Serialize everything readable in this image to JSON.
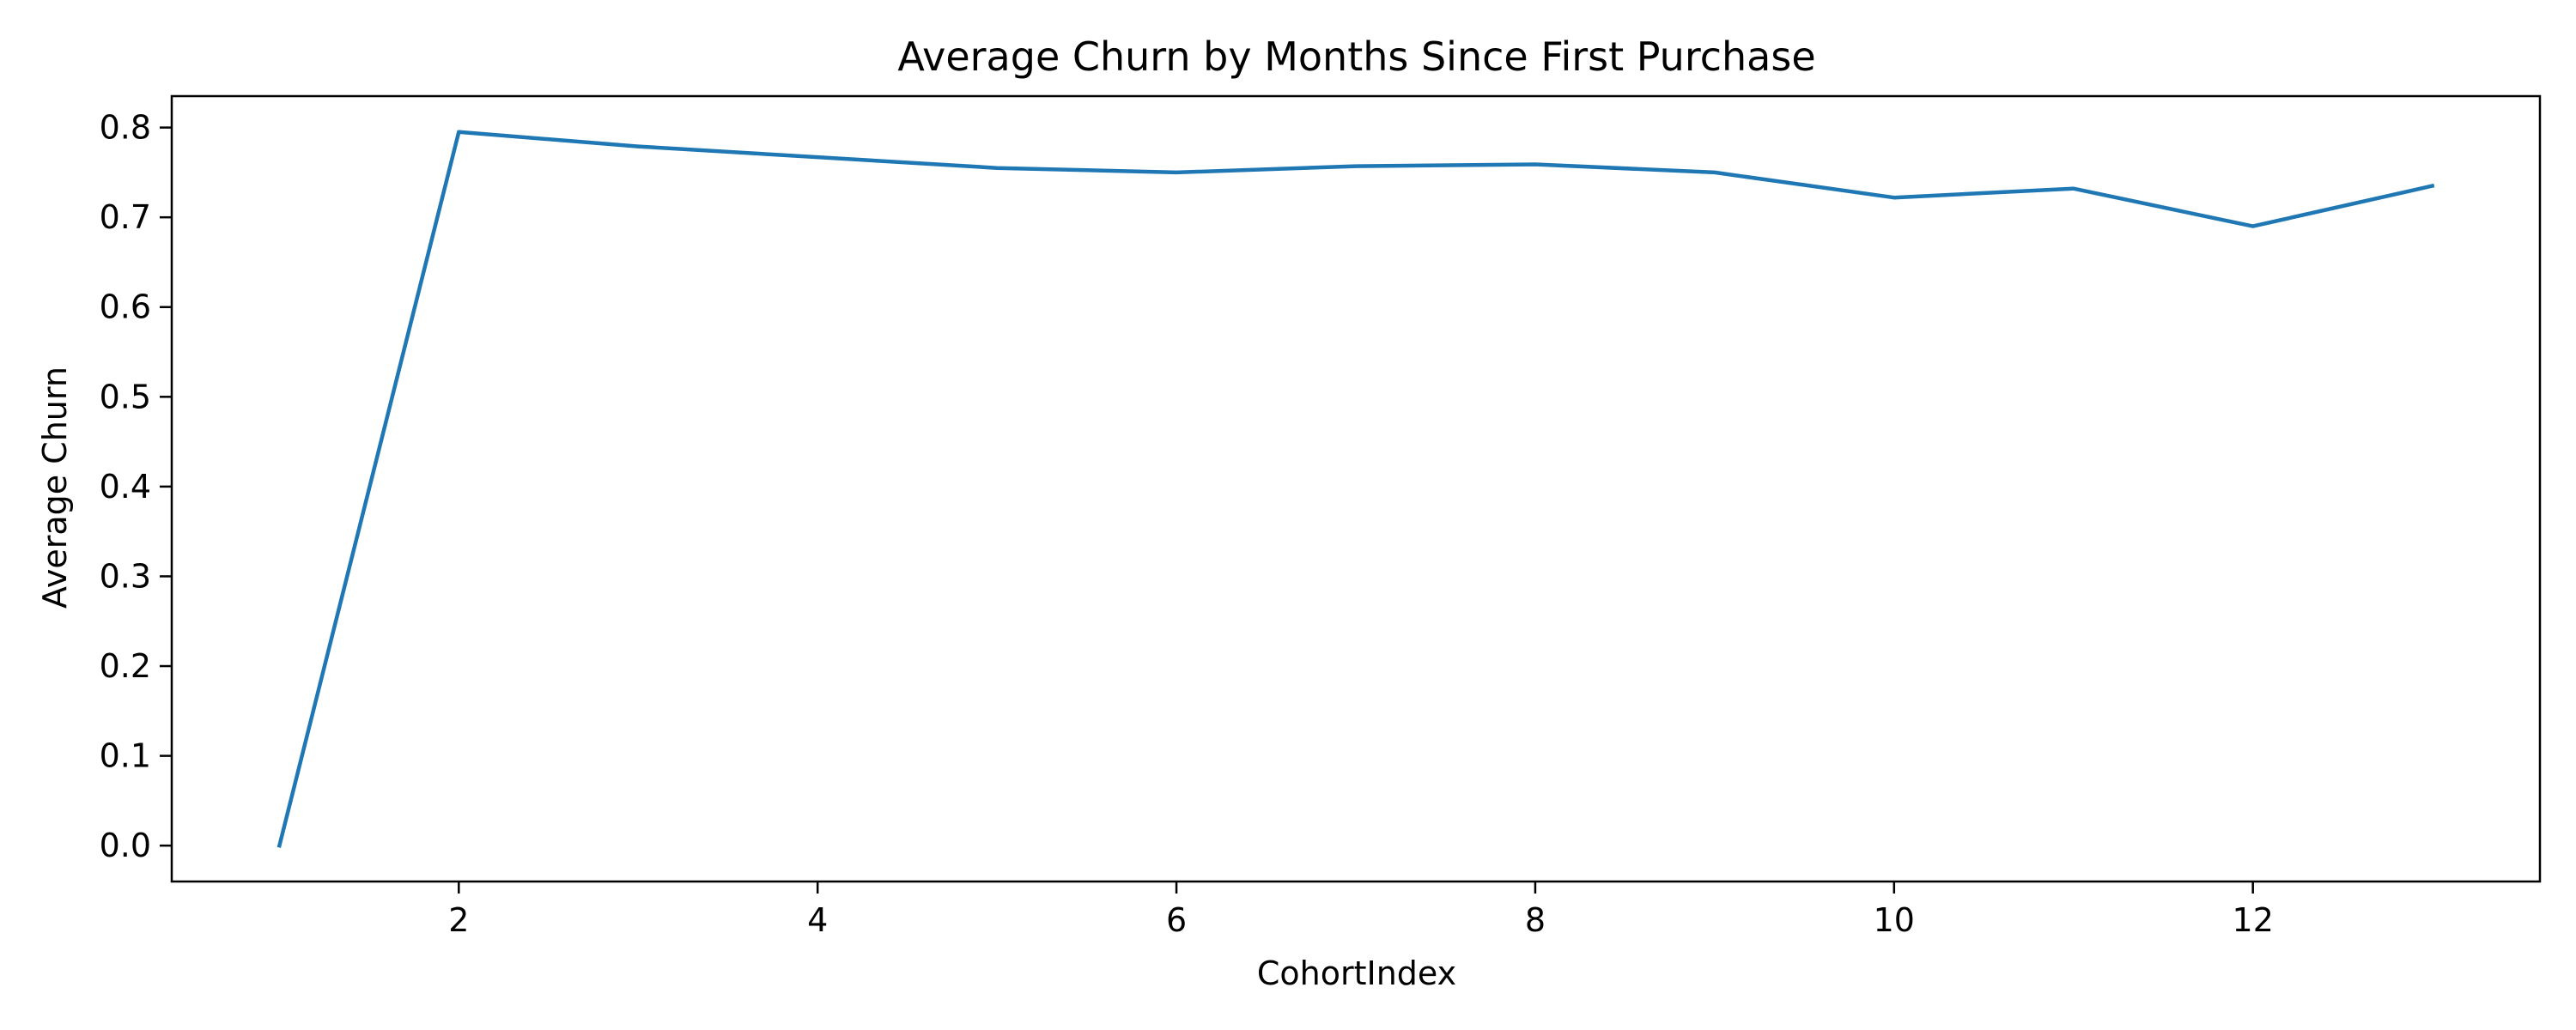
{
  "chart_data": {
    "type": "line",
    "title": "Average Churn by Months Since First Purchase",
    "xlabel": "CohortIndex",
    "ylabel": "Average Churn",
    "xlim": [
      0.4,
      13.6
    ],
    "ylim": [
      -0.04,
      0.835
    ],
    "x_ticks": [
      2,
      4,
      6,
      8,
      10,
      12
    ],
    "y_ticks": [
      0.0,
      0.1,
      0.2,
      0.3,
      0.4,
      0.5,
      0.6,
      0.7,
      0.8
    ],
    "grid": false,
    "series": [
      {
        "color": "#1f77b4",
        "x": [
          1,
          2,
          3,
          4,
          5,
          6,
          7,
          8,
          9,
          10,
          11,
          12,
          13
        ],
        "y": [
          0.0,
          0.795,
          0.779,
          0.767,
          0.755,
          0.75,
          0.757,
          0.759,
          0.75,
          0.722,
          0.732,
          0.69,
          0.735
        ]
      }
    ]
  }
}
